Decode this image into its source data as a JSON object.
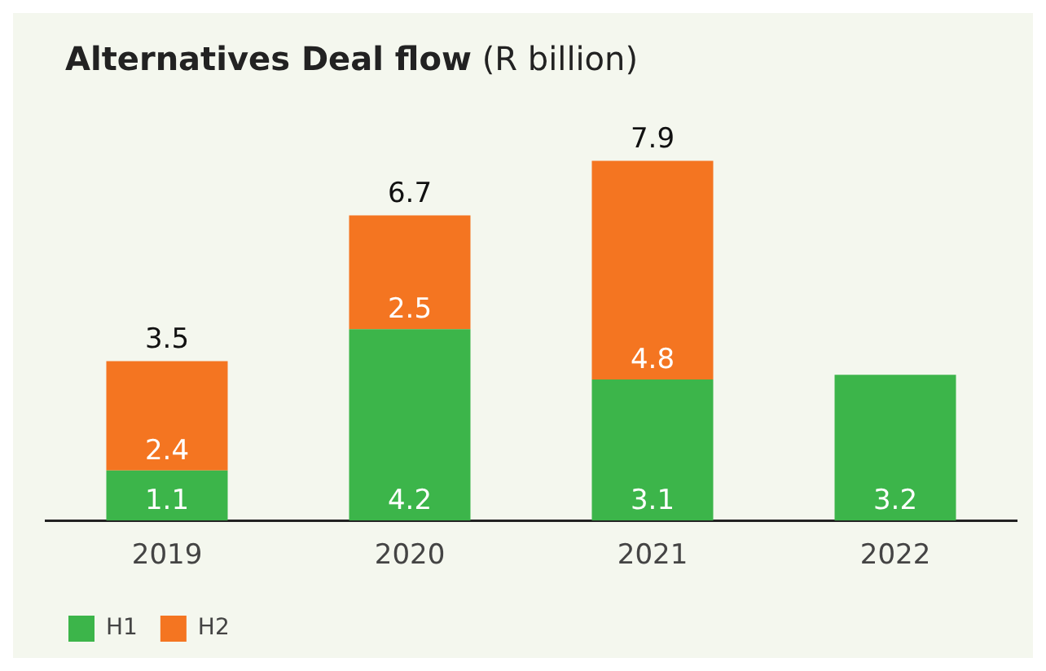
{
  "chart_data": {
    "type": "bar",
    "title": "Alternatives Deal flow",
    "subtitle": "(R billion)",
    "categories": [
      "2019",
      "2020",
      "2021",
      "2022"
    ],
    "stacked": true,
    "series": [
      {
        "name": "H1",
        "color": "#3cb54a",
        "values": [
          1.1,
          4.2,
          3.1,
          3.2
        ]
      },
      {
        "name": "H2",
        "color": "#f47521",
        "values": [
          2.4,
          2.5,
          4.8,
          null
        ]
      }
    ],
    "totals": [
      "3.5",
      "6.7",
      "7.9",
      null
    ],
    "data_labels": true,
    "legend": "bottom left"
  }
}
